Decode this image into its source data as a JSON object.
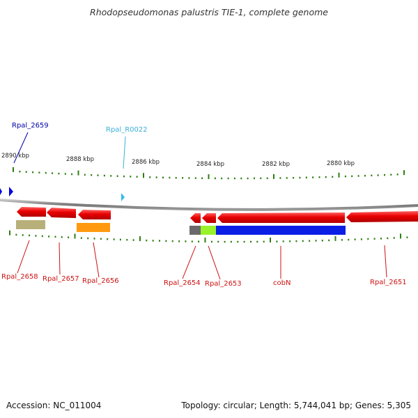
{
  "title": "Rhodopseudomonas palustris TIE-1, complete genome",
  "footer": {
    "accession": "Accession: NC_011004",
    "topology": "Topology: circular; Length: 5,744,041 bp; Genes: 5,305"
  },
  "ruler": {
    "labels": [
      "2890 kbp",
      "2888 kbp",
      "2886 kbp",
      "2884 kbp",
      "2882 kbp",
      "2880 kbp"
    ]
  },
  "gene_labels": {
    "rpal_2659": "Rpal_2659",
    "rpal_r0022": "Rpal_R0022",
    "rpal_2658": "Rpal_2658",
    "rpal_2657": "Rpal_2657",
    "rpal_2656": "Rpal_2656",
    "rpal_2654": "Rpal_2654",
    "rpal_2653": "Rpal_2653",
    "cobn": "cobN",
    "rpal_2651": "Rpal_2651"
  },
  "colors": {
    "gene_red": "#e80000",
    "blue_gene": "#0000dd",
    "rna_cyan": "#33bbee",
    "tick_green": "#2e7d12",
    "label_red": "#cc1111",
    "label_blue": "#0000aa",
    "label_cyan": "#3ab0d8",
    "backbone": "#8c8c8c",
    "cog_blue": "#0a1ee6",
    "cog_gray": "#6a6a6a",
    "cog_lime": "#99f22a",
    "cog_khaki": "#b8b07a",
    "cog_orange": "#ff9a10"
  }
}
